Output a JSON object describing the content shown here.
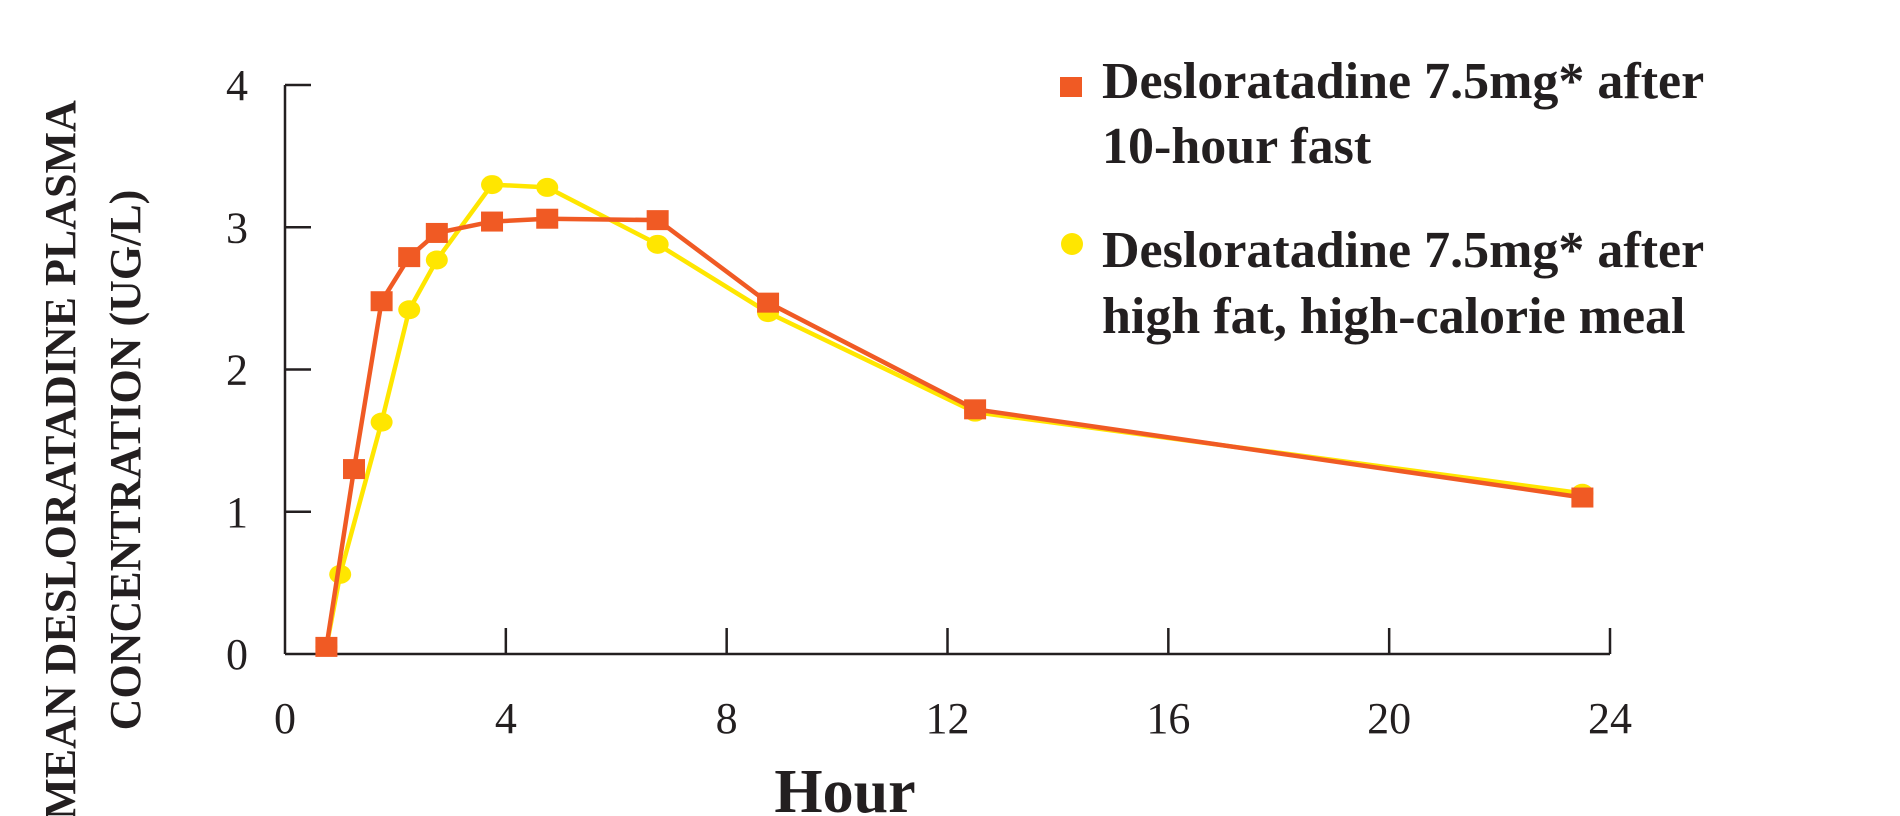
{
  "chart_data": {
    "type": "line",
    "title": "",
    "xlabel": "Hour",
    "ylabel_lines": [
      "MEAN DESLORATADINE PLASMA",
      "CONCENTRATION (UG/L)"
    ],
    "xlim": [
      0,
      24
    ],
    "ylim": [
      0,
      4
    ],
    "xticks": [
      0,
      4,
      8,
      12,
      16,
      20,
      24
    ],
    "yticks": [
      0,
      1,
      2,
      3,
      4
    ],
    "grid": false,
    "legend_position": "top-right",
    "series": [
      {
        "name_lines": [
          "Desloratadine 7.5mg* after",
          "10-hour fast"
        ],
        "marker": "square",
        "color": "#f05a24",
        "x": [
          0.75,
          1.25,
          1.75,
          2.25,
          2.75,
          3.75,
          4.75,
          6.75,
          8.75,
          12.5,
          23.5
        ],
        "y": [
          0.05,
          1.3,
          2.48,
          2.79,
          2.96,
          3.04,
          3.06,
          3.05,
          2.47,
          1.72,
          1.1
        ]
      },
      {
        "name_lines": [
          "Desloratadine 7.5mg* after",
          "high fat, high-calorie meal"
        ],
        "marker": "circle",
        "color": "#ffe600",
        "x": [
          0.75,
          1.0,
          1.75,
          2.25,
          2.75,
          3.75,
          4.75,
          6.75,
          8.75,
          12.5,
          23.5
        ],
        "y": [
          0.05,
          0.56,
          1.63,
          2.42,
          2.77,
          3.3,
          3.28,
          2.88,
          2.4,
          1.7,
          1.13
        ]
      }
    ]
  }
}
